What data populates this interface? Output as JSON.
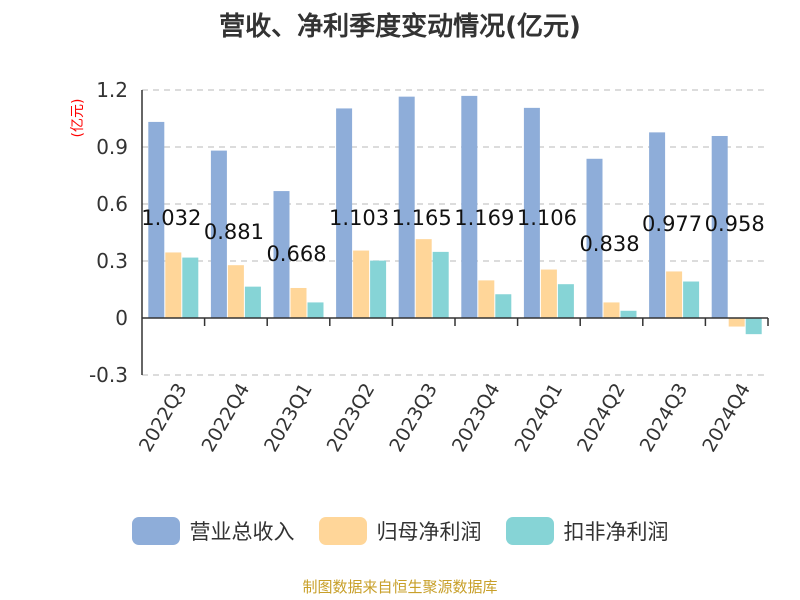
{
  "title": "营收、净利季度变动情况(亿元)",
  "footer": "制图数据来自恒生聚源数据库",
  "colors": {
    "revenue": "#8eadd9",
    "net_profit": "#ffd699",
    "deducted_profit": "#86d4d6",
    "grid": "#c8c8c8",
    "axis": "#333333"
  },
  "chart_data": {
    "type": "bar",
    "title": "营收、净利季度变动情况(亿元)",
    "ylabel": "(亿元)",
    "ylim": [
      -0.3,
      1.2
    ],
    "yticks": [
      "1.2",
      "0.9",
      "0.6",
      "0.3",
      "0",
      "-0.3"
    ],
    "ytick_values": [
      1.2,
      0.9,
      0.6,
      0.3,
      0,
      -0.3
    ],
    "grid": true,
    "legend_position": "bottom",
    "categories": [
      "2022Q3",
      "2022Q4",
      "2023Q1",
      "2023Q2",
      "2023Q3",
      "2023Q4",
      "2024Q1",
      "2024Q2",
      "2024Q3",
      "2024Q4"
    ],
    "series": [
      {
        "name": "营业总收入",
        "values": [
          1.032,
          0.881,
          0.668,
          1.103,
          1.165,
          1.169,
          1.106,
          0.838,
          0.977,
          0.958
        ]
      },
      {
        "name": "归母净利润",
        "values": [
          0.345,
          0.278,
          0.158,
          0.355,
          0.415,
          0.198,
          0.255,
          0.082,
          0.245,
          -0.045
        ]
      },
      {
        "name": "扣非净利润",
        "values": [
          0.318,
          0.165,
          0.082,
          0.302,
          0.348,
          0.125,
          0.178,
          0.038,
          0.192,
          -0.085
        ]
      }
    ],
    "data_labels": [
      "1.032",
      "0.881",
      "0.668",
      "1.103",
      "1.165",
      "1.169",
      "1.106",
      "0.838",
      "0.977",
      "0.958"
    ]
  }
}
